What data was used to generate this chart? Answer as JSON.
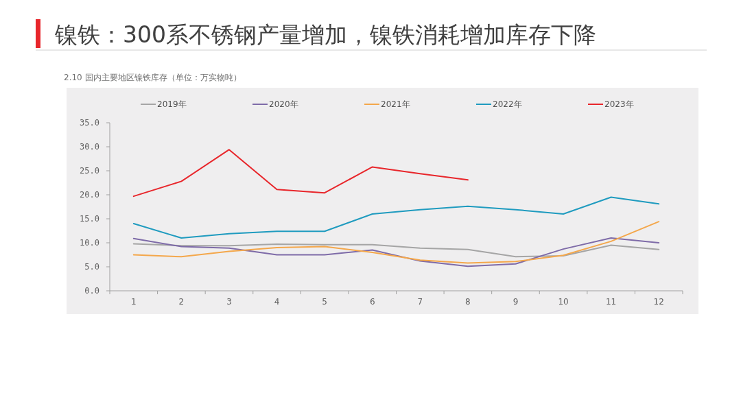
{
  "chart_data": {
    "type": "line",
    "title": "镍铁：300系不锈钢产量增加，镍铁消耗增加库存下降",
    "subtitle": "2.10 国内主要地区镍铁库存（单位：万实物吨）",
    "categories": [
      "1",
      "2",
      "3",
      "4",
      "5",
      "6",
      "7",
      "8",
      "9",
      "10",
      "11",
      "12"
    ],
    "ylim": [
      0,
      35
    ],
    "yticks": [
      {
        "value": 0,
        "label": "0.0"
      },
      {
        "value": 5,
        "label": "5.0"
      },
      {
        "value": 10,
        "label": "10.0"
      },
      {
        "value": 15,
        "label": "15.0"
      },
      {
        "value": 20,
        "label": "20.0"
      },
      {
        "value": 25,
        "label": "25.0"
      },
      {
        "value": 30,
        "label": "30.0"
      },
      {
        "value": 35,
        "label": "35.0"
      }
    ],
    "grid": false,
    "legend": "top",
    "line_style": "solid",
    "marker": "none",
    "series": [
      {
        "name": "2019年",
        "color": "#a5a5a5",
        "values": [
          9.8,
          9.4,
          9.4,
          9.7,
          9.6,
          9.6,
          8.9,
          8.6,
          7.1,
          7.3,
          9.5,
          8.6
        ]
      },
      {
        "name": "2020年",
        "color": "#7e6ba8",
        "values": [
          10.9,
          9.2,
          8.9,
          7.5,
          7.5,
          8.5,
          6.2,
          5.1,
          5.6,
          8.7,
          11.0,
          10.0
        ]
      },
      {
        "name": "2021年",
        "color": "#f4a74b",
        "values": [
          7.5,
          7.1,
          8.2,
          9.0,
          9.2,
          8.0,
          6.4,
          5.8,
          6.1,
          7.4,
          10.3,
          14.4
        ]
      },
      {
        "name": "2022年",
        "color": "#1f9bbf",
        "values": [
          14.0,
          11.0,
          11.9,
          12.4,
          12.4,
          16.0,
          16.9,
          17.6,
          16.9,
          16.0,
          19.5,
          18.1
        ]
      },
      {
        "name": "2023年",
        "color": "#e8262b",
        "values": [
          19.7,
          22.8,
          29.4,
          21.1,
          20.4,
          25.8,
          24.4,
          23.1,
          null,
          null,
          null,
          null
        ]
      }
    ]
  }
}
